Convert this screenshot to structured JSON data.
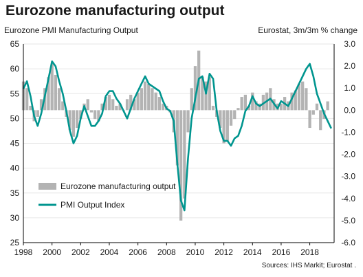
{
  "header": {
    "title": "Eurozone manufacturing output",
    "left_axis_label": "Eurozone PMI Manufacturing Output",
    "right_axis_label": "Eurostat, 3m/3m % change"
  },
  "footer": {
    "source": "Sources: IHS Markit; Eurostat ."
  },
  "colors": {
    "line": "#00958f",
    "bars": "#b3b3b3",
    "axis": "#000000"
  },
  "chart_data": {
    "type": "bar",
    "x_range": [
      1998.0,
      2019.7
    ],
    "x_ticks": [
      "1998",
      "2000",
      "2002",
      "2004",
      "2006",
      "2008",
      "2010",
      "2012",
      "2014",
      "2016",
      "2018"
    ],
    "y_left": {
      "range": [
        25,
        65
      ],
      "ticks": [
        "25",
        "30",
        "35",
        "40",
        "45",
        "50",
        "55",
        "60",
        "65"
      ]
    },
    "y_right": {
      "range": [
        -6.0,
        3.0
      ],
      "ticks": [
        "-6.0",
        "-5.0",
        "-4.0",
        "-3.0",
        "-2.0",
        "-1.0",
        "0.0",
        "1.0",
        "2.0",
        "3.0"
      ]
    },
    "legend": [
      "Eurozone manufacturing output",
      "PMI Output Index"
    ],
    "series": [
      {
        "name": "Eurozone manufacturing output",
        "type": "bar",
        "axis": "right",
        "x": [
          1998.0,
          1998.25,
          1998.5,
          1998.75,
          1999.0,
          1999.25,
          1999.5,
          1999.75,
          2000.0,
          2000.25,
          2000.5,
          2000.75,
          2001.0,
          2001.25,
          2001.5,
          2001.75,
          2002.0,
          2002.25,
          2002.5,
          2002.75,
          2003.0,
          2003.25,
          2003.5,
          2003.75,
          2004.0,
          2004.25,
          2004.5,
          2004.75,
          2005.0,
          2005.25,
          2005.5,
          2005.75,
          2006.0,
          2006.25,
          2006.5,
          2006.75,
          2007.0,
          2007.25,
          2007.5,
          2007.75,
          2008.0,
          2008.25,
          2008.5,
          2008.75,
          2009.0,
          2009.25,
          2009.5,
          2009.75,
          2010.0,
          2010.25,
          2010.5,
          2010.75,
          2011.0,
          2011.25,
          2011.5,
          2011.75,
          2012.0,
          2012.25,
          2012.5,
          2012.75,
          2013.0,
          2013.25,
          2013.5,
          2013.75,
          2014.0,
          2014.25,
          2014.5,
          2014.75,
          2015.0,
          2015.25,
          2015.5,
          2015.75,
          2016.0,
          2016.25,
          2016.5,
          2016.75,
          2017.0,
          2017.25,
          2017.5,
          2017.75,
          2018.0,
          2018.25,
          2018.5,
          2018.75,
          2019.0,
          2019.25
        ],
        "values": [
          1.3,
          1.0,
          0.2,
          -0.5,
          -0.3,
          0.5,
          1.0,
          1.5,
          2.1,
          1.6,
          1.0,
          0.4,
          -0.3,
          -0.9,
          -1.2,
          -0.8,
          -0.4,
          0.3,
          0.5,
          -0.1,
          -0.4,
          -0.5,
          0.3,
          0.6,
          0.7,
          0.5,
          0.2,
          0.3,
          0.0,
          0.5,
          0.7,
          0.5,
          0.8,
          1.0,
          1.3,
          1.2,
          1.0,
          0.8,
          0.6,
          0.3,
          0.2,
          -0.1,
          -1.0,
          -2.5,
          -5.0,
          -4.0,
          -1.0,
          1.0,
          2.0,
          2.7,
          1.5,
          1.3,
          1.5,
          0.2,
          -0.3,
          -0.8,
          -1.5,
          -1.4,
          -0.7,
          -0.4,
          0.1,
          0.6,
          0.7,
          0.2,
          0.8,
          0.4,
          0.3,
          0.7,
          0.8,
          1.0,
          0.5,
          0.3,
          0.3,
          0.6,
          0.4,
          0.8,
          0.9,
          1.2,
          1.3,
          1.0,
          -0.8,
          -0.2,
          0.3,
          -0.9,
          -0.4,
          0.4
        ]
      },
      {
        "name": "PMI Output Index",
        "type": "line",
        "axis": "left",
        "x": [
          1998.0,
          1998.25,
          1998.5,
          1998.75,
          1999.0,
          1999.25,
          1999.5,
          1999.75,
          2000.0,
          2000.25,
          2000.5,
          2000.75,
          2001.0,
          2001.25,
          2001.5,
          2001.75,
          2002.0,
          2002.25,
          2002.5,
          2002.75,
          2003.0,
          2003.25,
          2003.5,
          2003.75,
          2004.0,
          2004.25,
          2004.5,
          2004.75,
          2005.0,
          2005.25,
          2005.5,
          2005.75,
          2006.0,
          2006.25,
          2006.5,
          2006.75,
          2007.0,
          2007.25,
          2007.5,
          2007.75,
          2008.0,
          2008.25,
          2008.5,
          2008.75,
          2009.0,
          2009.25,
          2009.5,
          2009.75,
          2010.0,
          2010.25,
          2010.5,
          2010.75,
          2011.0,
          2011.25,
          2011.5,
          2011.75,
          2012.0,
          2012.25,
          2012.5,
          2012.75,
          2013.0,
          2013.25,
          2013.5,
          2013.75,
          2014.0,
          2014.25,
          2014.5,
          2014.75,
          2015.0,
          2015.25,
          2015.5,
          2015.75,
          2016.0,
          2016.25,
          2016.5,
          2016.75,
          2017.0,
          2017.25,
          2017.5,
          2017.75,
          2018.0,
          2018.25,
          2018.5,
          2018.75,
          2019.0,
          2019.25,
          2019.5
        ],
        "values": [
          56,
          57.5,
          54.5,
          50.5,
          48.5,
          51,
          54.5,
          58,
          61.5,
          60.5,
          57.5,
          55,
          51.5,
          47.5,
          45,
          46.5,
          50,
          52.5,
          50.5,
          48.5,
          48.5,
          49.5,
          51,
          54.5,
          55.5,
          55.5,
          54,
          53,
          51.5,
          50,
          52,
          54,
          55.5,
          57,
          58.5,
          57,
          56.5,
          56,
          55.5,
          53.5,
          52,
          51.5,
          49.5,
          41,
          33.5,
          31.5,
          42,
          50,
          54,
          58,
          58.5,
          55,
          59,
          58,
          51.5,
          47.5,
          45.5,
          45.5,
          44.5,
          46,
          46.5,
          48.5,
          51.5,
          52.5,
          54.5,
          53,
          52.5,
          53,
          53.5,
          54,
          53,
          52,
          53.5,
          53,
          52.5,
          54,
          55.5,
          57,
          58.5,
          60,
          61,
          58.5,
          55,
          53,
          51,
          49.5,
          48
        ]
      }
    ]
  }
}
